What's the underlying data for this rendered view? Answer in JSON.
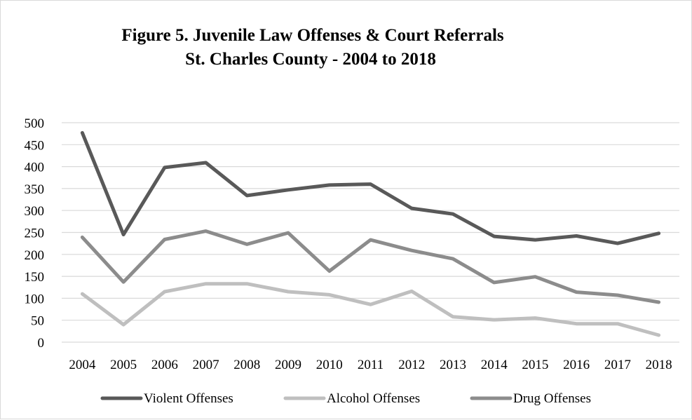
{
  "chart_data": {
    "type": "line",
    "title": "Figure 5. Juvenile Law Offenses & Court Referrals",
    "subtitle": "St. Charles County - 2004 to 2018",
    "xlabel": "",
    "ylabel": "",
    "categories": [
      "2004",
      "2005",
      "2006",
      "2007",
      "2008",
      "2009",
      "2010",
      "2011",
      "2012",
      "2013",
      "2014",
      "2015",
      "2016",
      "2017",
      "2018"
    ],
    "ylim": [
      0,
      500
    ],
    "yticks": [
      0,
      50,
      100,
      150,
      200,
      250,
      300,
      350,
      400,
      450,
      500
    ],
    "grid": "horizontal",
    "legend_position": "bottom",
    "series": [
      {
        "name": "Violent Offenses",
        "color": "#595959",
        "values": [
          477,
          245,
          398,
          409,
          334,
          347,
          358,
          360,
          305,
          292,
          241,
          233,
          242,
          225,
          248
        ]
      },
      {
        "name": "Alcohol Offenses",
        "color": "#bfbfbf",
        "values": [
          110,
          40,
          115,
          133,
          133,
          115,
          108,
          86,
          116,
          58,
          51,
          55,
          42,
          42,
          16
        ]
      },
      {
        "name": "Drug Offenses",
        "color": "#8c8c8c",
        "values": [
          239,
          137,
          234,
          253,
          223,
          249,
          162,
          233,
          209,
          190,
          136,
          149,
          114,
          107,
          91
        ]
      }
    ]
  }
}
